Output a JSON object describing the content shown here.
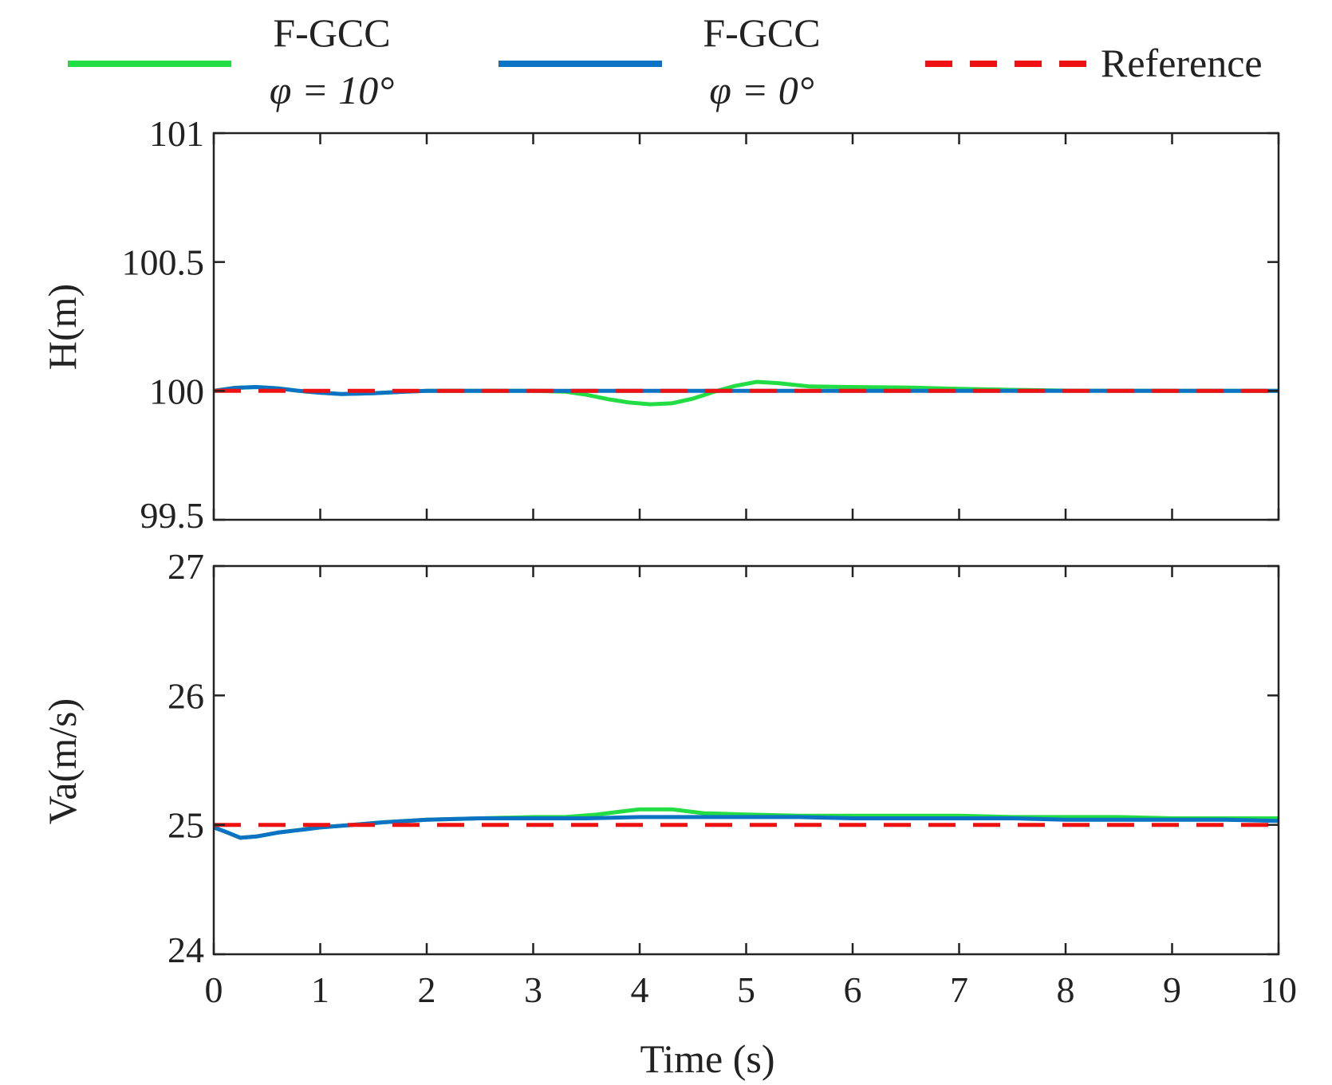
{
  "chart_data": [
    {
      "type": "line",
      "ylabel": "H(m)",
      "xlabel": "",
      "xlim": [
        0,
        10
      ],
      "ylim": [
        99.5,
        101
      ],
      "yticks": [
        "99.5",
        "100",
        "100.5",
        "101"
      ],
      "ytick_values": [
        99.5,
        100,
        100.5,
        101
      ],
      "series": [
        {
          "name": "F-GCC φ = 10°",
          "color": "#22dd44",
          "style": "solid",
          "x": [
            0,
            0.2,
            0.4,
            0.6,
            0.8,
            1.0,
            1.2,
            1.5,
            1.8,
            2.0,
            3.0,
            3.3,
            3.5,
            3.7,
            3.9,
            4.1,
            4.3,
            4.5,
            4.7,
            4.9,
            5.1,
            5.3,
            5.6,
            6.0,
            6.5,
            7.0,
            7.5,
            8.0,
            9.0,
            10.0
          ],
          "y": [
            100,
            100.012,
            100.015,
            100.01,
            100.0,
            99.993,
            99.988,
            99.991,
            99.997,
            100,
            100,
            99.997,
            99.985,
            99.968,
            99.955,
            99.948,
            99.952,
            99.97,
            99.997,
            100.02,
            100.035,
            100.03,
            100.017,
            100.015,
            100.013,
            100.008,
            100.004,
            100.001,
            100,
            100
          ]
        },
        {
          "name": "F-GCC φ = 0°",
          "color": "#0c72c4",
          "style": "solid",
          "x": [
            0,
            0.2,
            0.4,
            0.6,
            0.8,
            1.0,
            1.2,
            1.5,
            1.8,
            2.0,
            3.0,
            4.0,
            5.0,
            6.0,
            7.0,
            8.0,
            9.0,
            10.0
          ],
          "y": [
            100,
            100.012,
            100.015,
            100.01,
            100.0,
            99.993,
            99.988,
            99.991,
            99.997,
            100,
            100,
            100,
            100,
            100,
            100,
            100,
            100,
            100
          ]
        },
        {
          "name": "Reference",
          "color": "#ee1111",
          "style": "dashed",
          "x": [
            0,
            10
          ],
          "y": [
            100,
            100
          ]
        }
      ]
    },
    {
      "type": "line",
      "ylabel": "Va(m/s)",
      "xlabel": "Time (s)",
      "xlim": [
        0,
        10
      ],
      "ylim": [
        24,
        27
      ],
      "yticks": [
        "24",
        "25",
        "26",
        "27"
      ],
      "ytick_values": [
        24,
        25,
        26,
        27
      ],
      "xticks": [
        "0",
        "1",
        "2",
        "3",
        "4",
        "5",
        "6",
        "7",
        "8",
        "9",
        "10"
      ],
      "xtick_values": [
        0,
        1,
        2,
        3,
        4,
        5,
        6,
        7,
        8,
        9,
        10
      ],
      "series": [
        {
          "name": "F-GCC φ = 10°",
          "color": "#22dd44",
          "style": "solid",
          "x": [
            0,
            0.1,
            0.25,
            0.4,
            0.6,
            0.8,
            1.0,
            1.3,
            1.6,
            2.0,
            2.5,
            3.0,
            3.3,
            3.6,
            3.8,
            4.0,
            4.3,
            4.6,
            5.0,
            5.5,
            6.0,
            6.5,
            7.0,
            7.5,
            8.0,
            8.5,
            9.0,
            9.5,
            10.0
          ],
          "y": [
            24.98,
            24.95,
            24.9,
            24.91,
            24.94,
            24.96,
            24.98,
            25.0,
            25.02,
            25.04,
            25.05,
            25.06,
            25.06,
            25.08,
            25.1,
            25.12,
            25.12,
            25.09,
            25.08,
            25.07,
            25.07,
            25.07,
            25.07,
            25.06,
            25.06,
            25.06,
            25.05,
            25.05,
            25.05
          ]
        },
        {
          "name": "F-GCC φ = 0°",
          "color": "#0c72c4",
          "style": "solid",
          "x": [
            0,
            0.1,
            0.25,
            0.4,
            0.6,
            0.8,
            1.0,
            1.3,
            1.6,
            2.0,
            2.5,
            3.0,
            3.5,
            4.0,
            4.5,
            5.0,
            5.5,
            6.0,
            6.5,
            7.0,
            7.5,
            8.0,
            8.5,
            9.0,
            9.5,
            10.0
          ],
          "y": [
            24.98,
            24.95,
            24.9,
            24.91,
            24.94,
            24.96,
            24.98,
            25.0,
            25.02,
            25.04,
            25.05,
            25.05,
            25.05,
            25.06,
            25.06,
            25.06,
            25.06,
            25.05,
            25.05,
            25.05,
            25.05,
            25.04,
            25.04,
            25.04,
            25.04,
            25.03
          ]
        },
        {
          "name": "Reference",
          "color": "#ee1111",
          "style": "dashed",
          "x": [
            0,
            10
          ],
          "y": [
            25,
            25
          ]
        }
      ]
    }
  ],
  "legend": {
    "placement": "top",
    "entries": [
      {
        "line1": "F-GCC",
        "line2": "φ = 10°",
        "color": "#22dd44",
        "style": "solid"
      },
      {
        "line1": "F-GCC",
        "line2": "φ = 0°",
        "color": "#0c72c4",
        "style": "solid"
      },
      {
        "line1": "Reference",
        "line2": "",
        "color": "#ee1111",
        "style": "dashed"
      }
    ]
  }
}
